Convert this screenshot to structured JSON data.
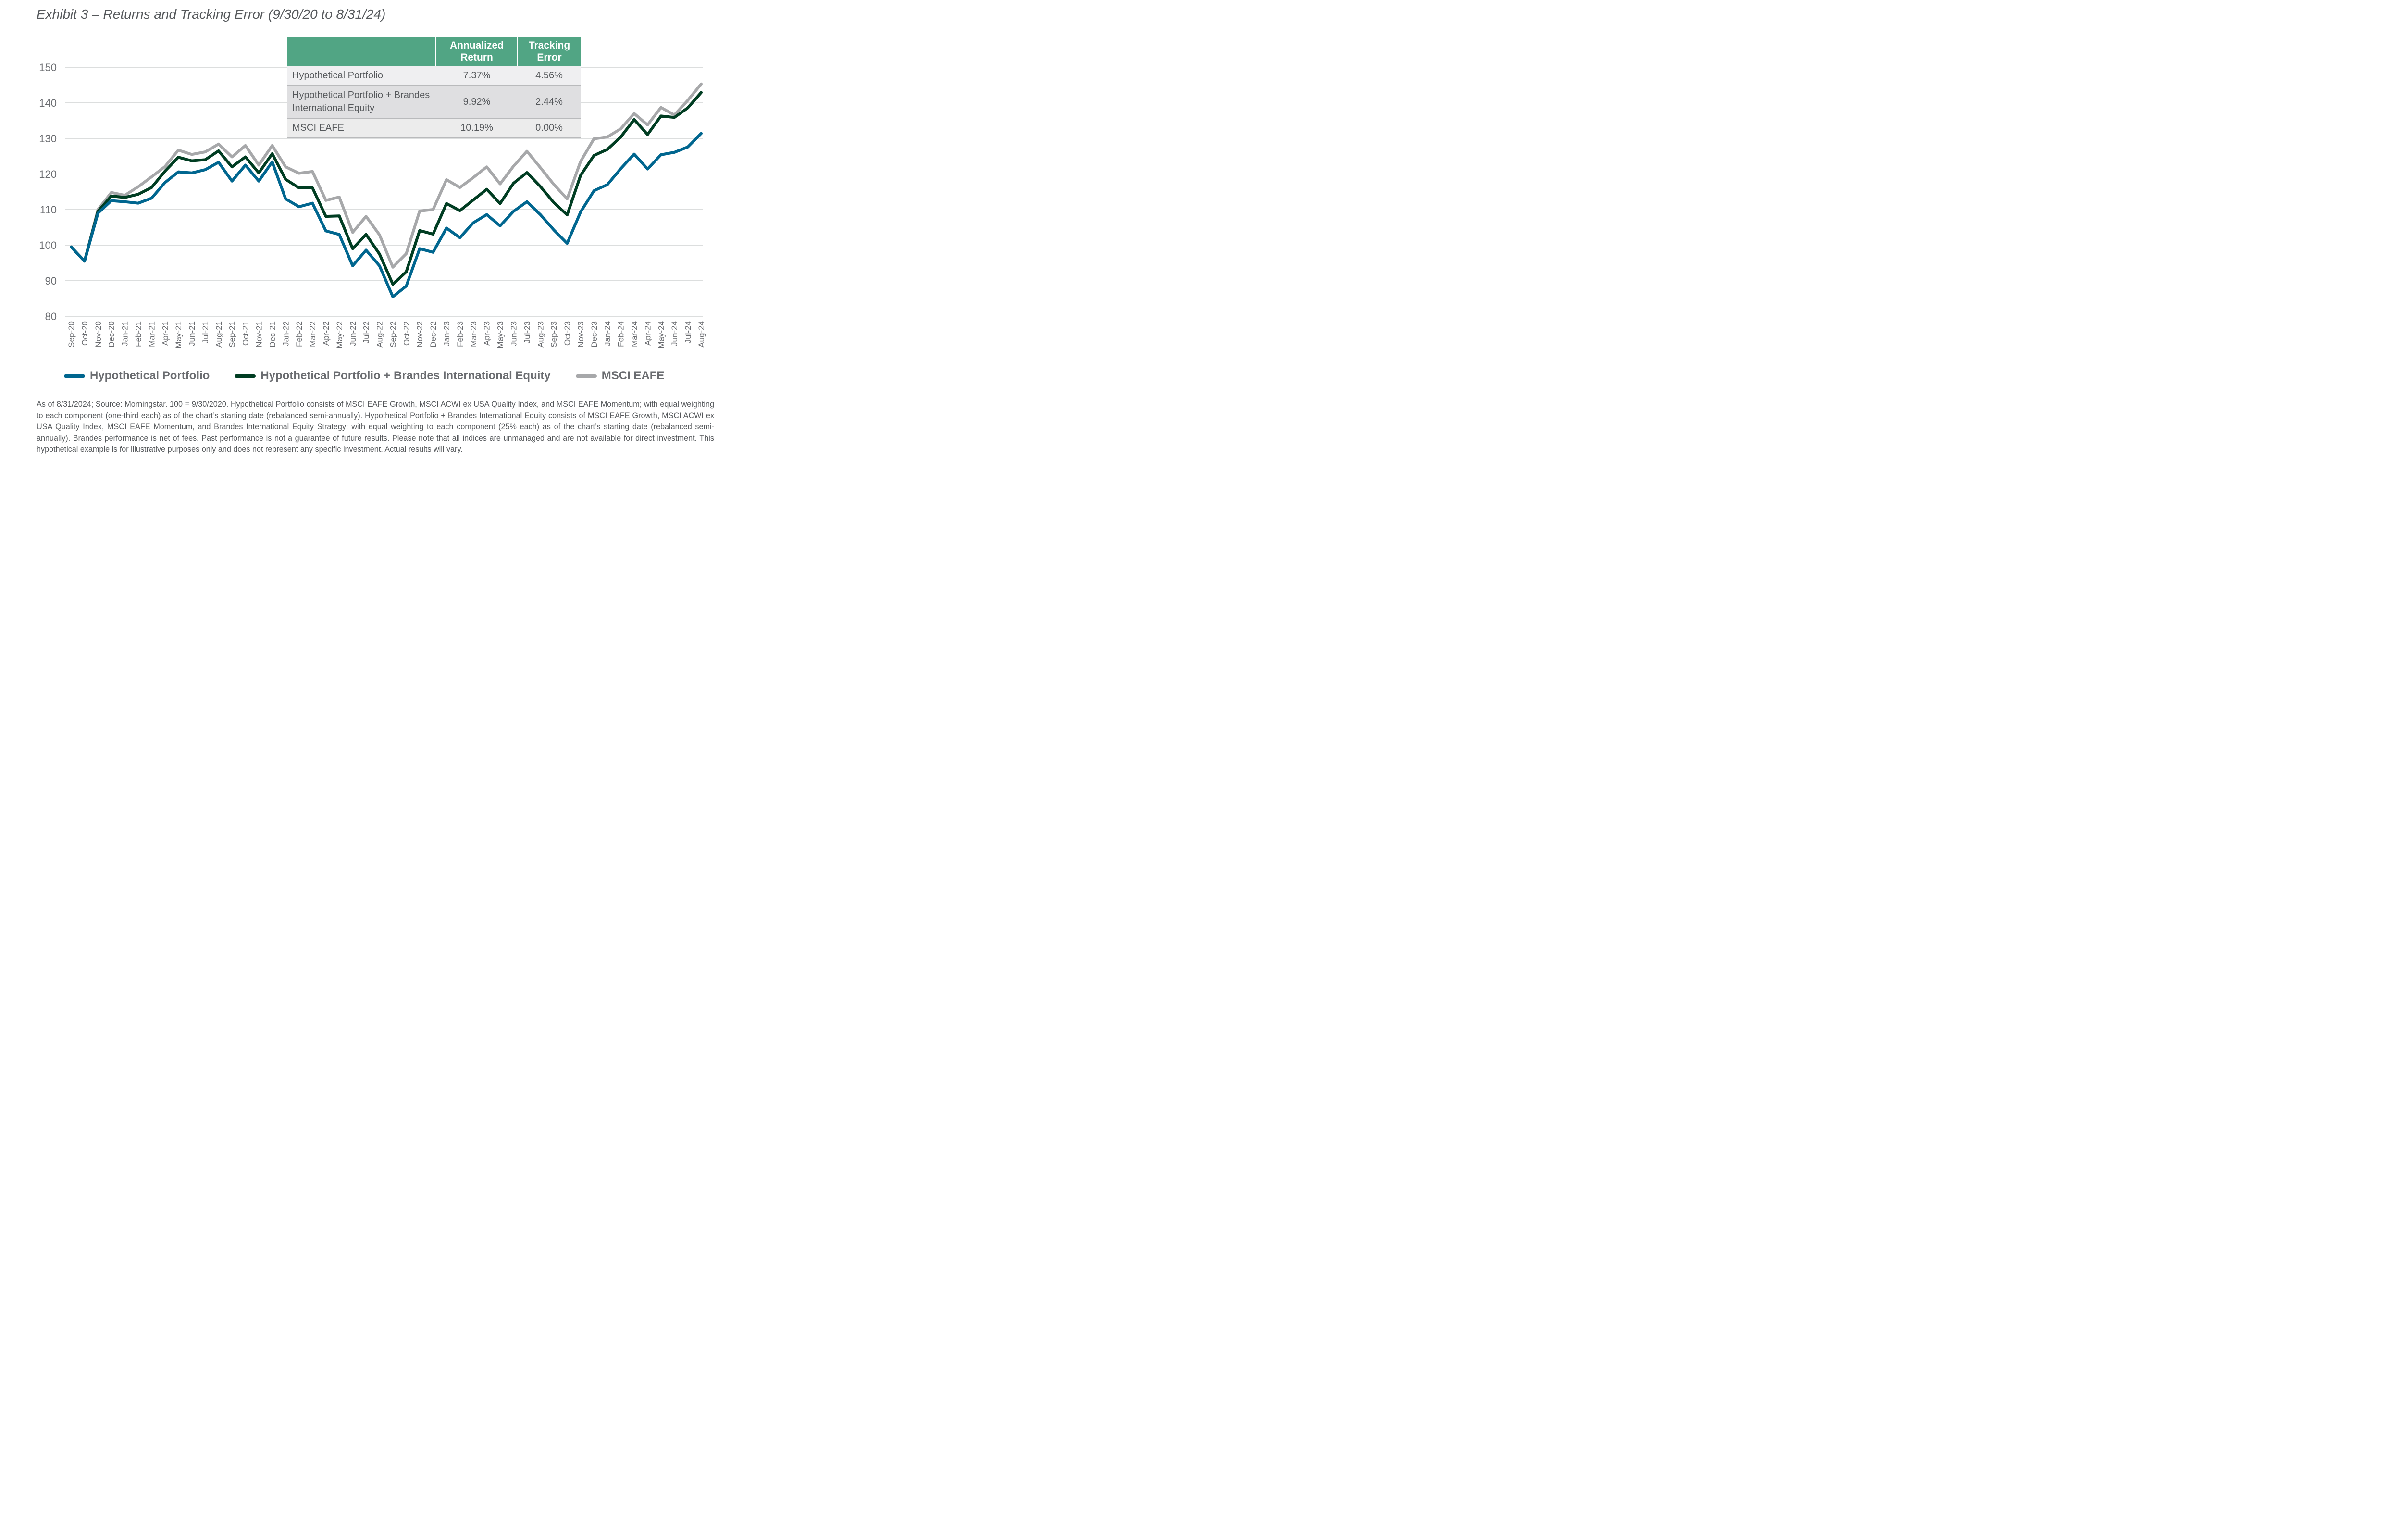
{
  "title": "Exhibit 3 – Returns and Tracking Error (9/30/20 to 8/31/24)",
  "table": {
    "headers": [
      "",
      "Annualized Return",
      "Tracking Error"
    ],
    "rows": [
      {
        "name": "Hypothetical Portfolio",
        "annualized_return": "7.37%",
        "tracking_error": "4.56%"
      },
      {
        "name": "Hypothetical Portfolio + Brandes International Equity",
        "annualized_return": "9.92%",
        "tracking_error": "2.44%"
      },
      {
        "name": "MSCI EAFE",
        "annualized_return": "10.19%",
        "tracking_error": "0.00%"
      }
    ]
  },
  "chart_data": {
    "type": "line",
    "title": "Exhibit 3 – Returns and Tracking Error (9/30/20 to 8/31/24)",
    "xlabel": "",
    "ylabel": "",
    "ylim": [
      80,
      150
    ],
    "yticks": [
      80,
      90,
      100,
      110,
      120,
      130,
      140,
      150
    ],
    "grid": true,
    "legend": "bottom",
    "x": [
      "Sep-20",
      "Oct-20",
      "Nov-20",
      "Dec-20",
      "Jan-21",
      "Feb-21",
      "Mar-21",
      "Apr-21",
      "May-21",
      "Jun-21",
      "Jul-21",
      "Aug-21",
      "Sep-21",
      "Oct-21",
      "Nov-21",
      "Dec-21",
      "Jan-22",
      "Feb-22",
      "Mar-22",
      "Apr-22",
      "May-22",
      "Jun-22",
      "Jul-22",
      "Aug-22",
      "Sep-22",
      "Oct-22",
      "Nov-22",
      "Dec-22",
      "Jan-23",
      "Feb-23",
      "Mar-23",
      "Apr-23",
      "May-23",
      "Jun-23",
      "Jul-23",
      "Aug-23",
      "Sep-23",
      "Oct-23",
      "Nov-23",
      "Dec-23",
      "Jan-24",
      "Feb-24",
      "Mar-24",
      "Apr-24",
      "May-24",
      "Jun-24",
      "Jul-24",
      "Aug-24"
    ],
    "series": [
      {
        "name": "Hypothetical Portfolio",
        "color": "#00668f",
        "values": [
          99.5,
          95.5,
          109.0,
          112.5,
          112.2,
          111.8,
          113.2,
          117.6,
          120.6,
          120.3,
          121.2,
          123.3,
          118.0,
          122.5,
          118.0,
          123.4,
          113.0,
          110.8,
          111.8,
          104.0,
          103.0,
          94.2,
          98.6,
          94.2,
          85.5,
          88.5,
          99.0,
          98.0,
          104.8,
          102.1,
          106.3,
          108.6,
          105.4,
          109.5,
          112.2,
          108.6,
          104.3,
          100.5,
          109.3,
          115.3,
          117.0,
          121.5,
          125.6,
          121.4,
          125.4,
          126.1,
          127.6,
          131.4
        ]
      },
      {
        "name": "Hypothetical Portfolio + Brandes International Equity",
        "color": "#003d22",
        "values": [
          99.5,
          95.5,
          109.5,
          113.8,
          113.4,
          114.3,
          116.2,
          120.8,
          124.7,
          123.7,
          124.0,
          126.5,
          122.0,
          124.8,
          120.3,
          125.7,
          118.5,
          116.1,
          116.1,
          108.1,
          108.2,
          99.0,
          103.0,
          97.5,
          89.0,
          92.5,
          104.1,
          103.1,
          111.7,
          109.7,
          112.7,
          115.7,
          111.7,
          117.4,
          120.4,
          116.5,
          112.0,
          108.5,
          119.6,
          125.2,
          126.9,
          130.4,
          135.3,
          131.1,
          136.3,
          135.9,
          138.6,
          142.9
        ]
      },
      {
        "name": "MSCI EAFE",
        "color": "#a7a8aa",
        "values": [
          99.5,
          95.5,
          110.0,
          114.8,
          114.0,
          116.4,
          119.2,
          122.1,
          126.7,
          125.5,
          126.2,
          128.4,
          124.8,
          128.0,
          122.5,
          128.0,
          122.0,
          120.2,
          120.7,
          112.6,
          113.5,
          103.6,
          108.1,
          102.9,
          93.8,
          97.6,
          109.6,
          110.0,
          118.4,
          116.2,
          119.0,
          122.0,
          117.2,
          122.2,
          126.4,
          121.8,
          117.1,
          113.0,
          123.5,
          129.9,
          130.4,
          132.7,
          137.0,
          133.8,
          138.7,
          136.6,
          140.7,
          145.3
        ]
      }
    ]
  },
  "legend": [
    {
      "label": "Hypothetical Portfolio",
      "color": "#00668f"
    },
    {
      "label": "Hypothetical Portfolio + Brandes International Equity",
      "color": "#003d22"
    },
    {
      "label": "MSCI EAFE",
      "color": "#a7a8aa"
    }
  ],
  "footnote": "As of 8/31/2024; Source: Morningstar. 100 = 9/30/2020. Hypothetical Portfolio consists of MSCI EAFE Growth, MSCI ACWI ex USA Quality Index, and MSCI EAFE Momentum; with equal weighting to each component (one-third each) as of the chart’s starting date (rebalanced semi-annually). Hypothetical Portfolio + Brandes International Equity consists of MSCI EAFE Growth, MSCI ACWI ex USA Quality Index, MSCI EAFE Momentum, and Brandes International Equity Strategy; with equal weighting to each component (25% each) as of the chart’s starting date (rebalanced semi-annually). Brandes performance is net of fees. Past performance is not a guarantee of future results. Please note that all indices are unmanaged and are not available for direct investment. This hypothetical example is for illustrative purposes only and does not represent any specific investment. Actual results will vary."
}
